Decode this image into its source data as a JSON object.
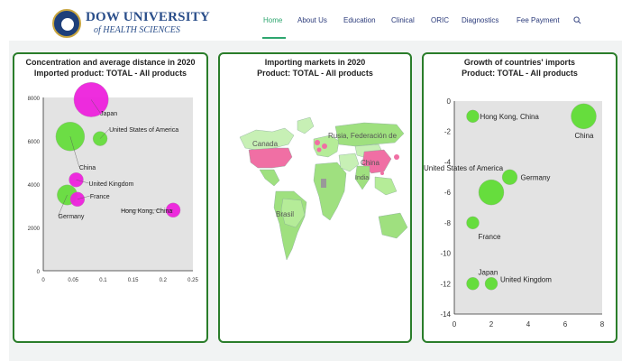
{
  "header": {
    "logo_line1": "DOW UNIVERSITY",
    "logo_line2": "of HEALTH SCIENCES",
    "nav": [
      "Home",
      "About Us",
      "Education",
      "Clinical",
      "ORIC",
      "Diagnostics",
      "Fee Payment"
    ],
    "active_nav": "Home",
    "search_icon": "search-icon"
  },
  "colors": {
    "accent": "#2ea66f",
    "panel_border": "#2a7d2a",
    "bubble_green": "#66dd3d",
    "bubble_magenta": "#ee22dd",
    "map_pink": "#f06fa4"
  },
  "panels": {
    "left": {
      "title_line1": "Concentration and average distance in 2020",
      "title_line2": "Imported product: TOTAL - All products"
    },
    "middle": {
      "title_line1": "Importing markets in 2020",
      "title_line2": "Product: TOTAL - All products",
      "map_labels": [
        "Canada",
        "Rusia, Federación de",
        "China",
        "India",
        "Brasil"
      ]
    },
    "right": {
      "title_line1": "Growth of countries' imports",
      "title_line2": "Product: TOTAL - All products"
    }
  },
  "chart_data": [
    {
      "type": "scatter",
      "title": "Concentration and average distance in 2020",
      "subtitle": "Imported product: TOTAL - All products",
      "xlim": [
        0,
        0.25
      ],
      "ylim": [
        0,
        8000
      ],
      "x_ticks": [
        "0",
        "0.05",
        "0.1",
        "0.15",
        "0.2",
        "0.25"
      ],
      "y_ticks": [
        "0",
        "2000",
        "4000",
        "6000",
        "8000"
      ],
      "points": [
        {
          "label": "Japan",
          "x": 0.08,
          "y": 7900,
          "size": 12,
          "color": "#ee22dd"
        },
        {
          "label": "United States of America",
          "x": 0.095,
          "y": 6100,
          "size": 5,
          "color": "#66dd3d"
        },
        {
          "label": "China",
          "x": 0.045,
          "y": 6200,
          "size": 10,
          "color": "#66dd3d"
        },
        {
          "label": "United Kingdom",
          "x": 0.055,
          "y": 4200,
          "size": 5,
          "color": "#ee22dd"
        },
        {
          "label": "Germany",
          "x": 0.04,
          "y": 3500,
          "size": 7,
          "color": "#66dd3d"
        },
        {
          "label": "France",
          "x": 0.057,
          "y": 3300,
          "size": 5,
          "color": "#ee22dd"
        },
        {
          "label": "Hong Kong, China",
          "x": 0.217,
          "y": 2800,
          "size": 5,
          "color": "#ee22dd"
        }
      ]
    },
    {
      "type": "scatter",
      "title": "Growth of countries' imports",
      "subtitle": "Product: TOTAL - All products",
      "xlim": [
        0,
        8
      ],
      "ylim": [
        -14,
        0
      ],
      "x_ticks": [
        "0",
        "2",
        "4",
        "6",
        "8"
      ],
      "y_ticks": [
        "0",
        "-2",
        "-4",
        "-6",
        "-8",
        "-10",
        "-12",
        "-14"
      ],
      "points": [
        {
          "label": "Hong Kong, China",
          "x": 1,
          "y": -1,
          "size": 5,
          "color": "#66dd3d"
        },
        {
          "label": "China",
          "x": 7,
          "y": -1,
          "size": 10,
          "color": "#66dd3d"
        },
        {
          "label": "United States of America",
          "x": 2,
          "y": -6,
          "size": 10,
          "color": "#66dd3d"
        },
        {
          "label": "Germany",
          "x": 3,
          "y": -5,
          "size": 6,
          "color": "#66dd3d"
        },
        {
          "label": "France",
          "x": 1,
          "y": -8,
          "size": 5,
          "color": "#66dd3d"
        },
        {
          "label": "Japan",
          "x": 1,
          "y": -12,
          "size": 5,
          "color": "#66dd3d"
        },
        {
          "label": "United Kingdom",
          "x": 2,
          "y": -12,
          "size": 5,
          "color": "#66dd3d"
        }
      ]
    }
  ]
}
